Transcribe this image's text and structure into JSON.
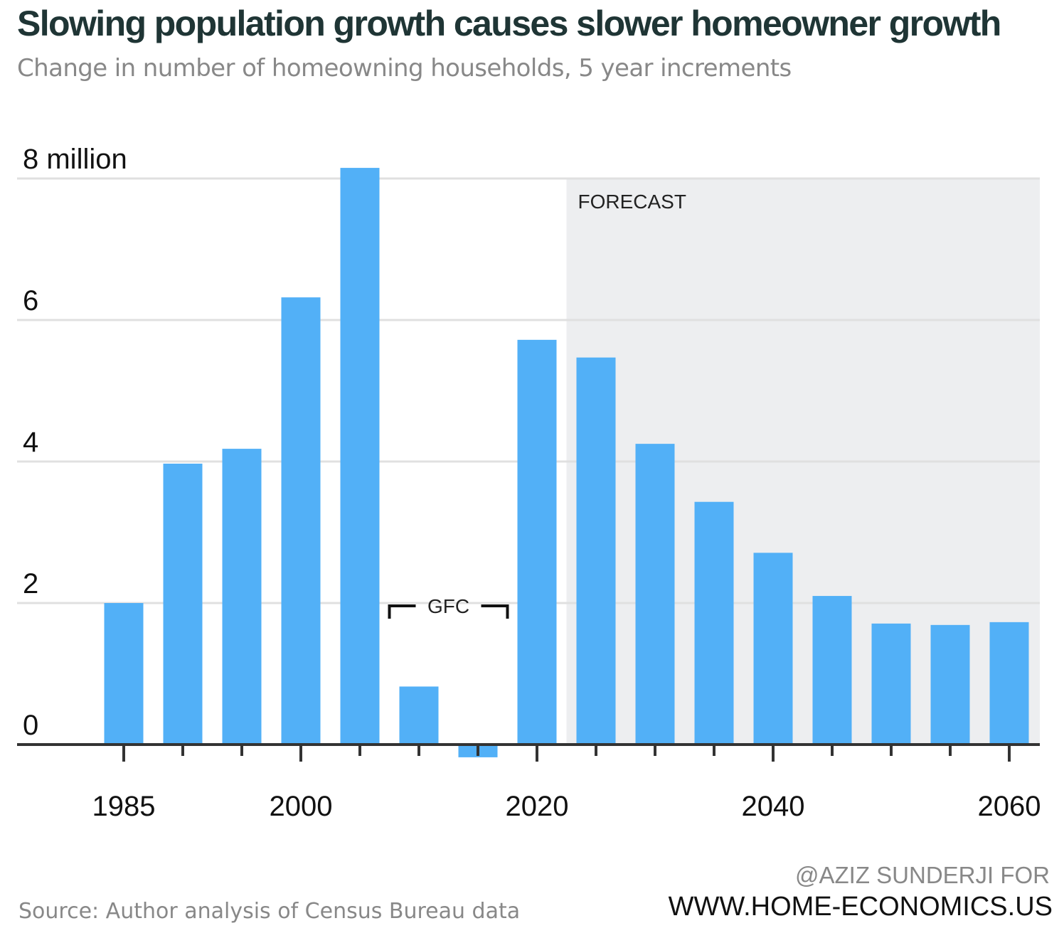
{
  "title": "Slowing population growth causes slower homeowner growth",
  "subtitle": "Change in number of homeowning households, 5 year increments",
  "source": "Source: Author analysis of Census Bureau data",
  "credit": {
    "line1": "@AZIZ SUNDERJI FOR",
    "line2": "WWW.HOME-ECONOMICS.US"
  },
  "colors": {
    "bar": "#52b0f7",
    "forecast_bg": "#edeef0",
    "grid": "#e0e0e0",
    "axis": "#333333"
  },
  "chart_data": {
    "type": "bar",
    "x": [
      1985,
      1990,
      1995,
      2000,
      2005,
      2010,
      2015,
      2020,
      2025,
      2030,
      2035,
      2040,
      2045,
      2050,
      2055,
      2060
    ],
    "values": [
      2.0,
      3.97,
      4.18,
      6.32,
      8.15,
      0.82,
      -0.18,
      5.72,
      5.47,
      4.25,
      3.43,
      2.71,
      2.1,
      1.71,
      1.69,
      1.73
    ],
    "unit": "million",
    "ylim": [
      0,
      8
    ],
    "yticks": [
      0,
      2,
      4,
      6,
      8
    ],
    "ytick_labels": [
      "0",
      "2",
      "4",
      "6",
      "8 million"
    ],
    "xticks_labeled": [
      1985,
      2000,
      2020,
      2040,
      2060
    ],
    "xtick_labels": [
      "1985",
      "2000",
      "2020",
      "2040",
      "2060"
    ],
    "grid": true,
    "forecast": {
      "label": "FORECAST",
      "from": 2022.5,
      "to": 2061.5
    },
    "annotations": [
      {
        "label": "GFC",
        "from": 2007.5,
        "to": 2017.5
      }
    ]
  }
}
